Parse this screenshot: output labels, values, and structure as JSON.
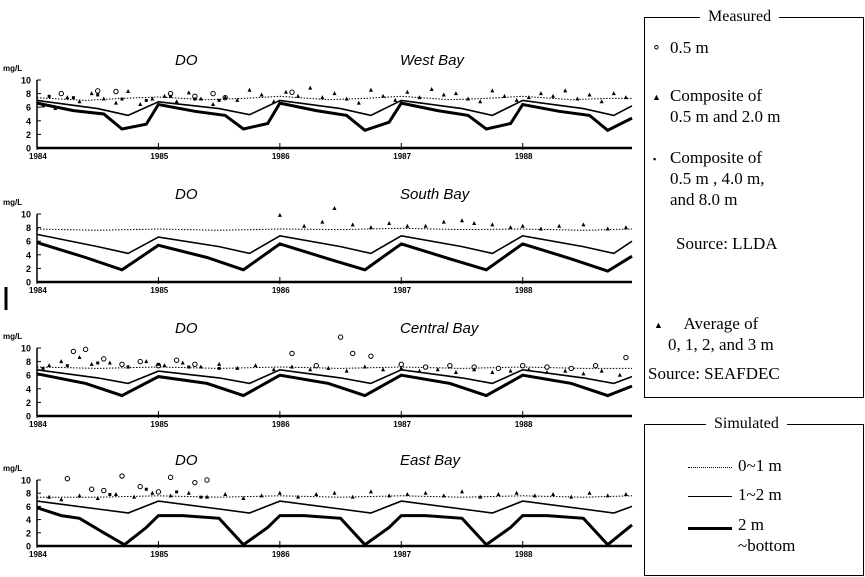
{
  "chart_data": [
    {
      "type": "line",
      "title": "DO",
      "subtitle": "West Bay",
      "ylabel": "mg/L",
      "yticks": [
        "0",
        "2",
        "4",
        "6",
        "8",
        "10"
      ],
      "ylim": [
        0,
        10
      ],
      "xticks": [
        "1984",
        "1985",
        "1986",
        "1987",
        "1988"
      ],
      "xlim": [
        1984,
        1988.9
      ],
      "grid": false,
      "series": [
        {
          "name": "0~1 m",
          "style": "dotted",
          "x": [
            1984.0,
            1984.4,
            1984.7,
            1985.0,
            1985.4,
            1985.7,
            1986.0,
            1986.4,
            1986.7,
            1987.0,
            1987.4,
            1987.7,
            1988.0,
            1988.4,
            1988.7,
            1988.9
          ],
          "y": [
            7.4,
            7.0,
            7.3,
            7.5,
            7.1,
            7.3,
            7.6,
            7.1,
            7.3,
            7.6,
            7.1,
            7.3,
            7.6,
            7.1,
            7.3,
            7.3
          ]
        },
        {
          "name": "1~2 m",
          "style": "solid",
          "x": [
            1984.0,
            1984.5,
            1984.75,
            1985.0,
            1985.5,
            1985.75,
            1986.0,
            1986.5,
            1986.75,
            1987.0,
            1987.5,
            1987.75,
            1988.0,
            1988.5,
            1988.75,
            1988.9
          ],
          "y": [
            7.0,
            5.8,
            4.8,
            6.8,
            5.8,
            4.9,
            7.0,
            5.8,
            4.8,
            7.0,
            5.8,
            4.8,
            7.0,
            5.8,
            4.8,
            6.2
          ]
        },
        {
          "name": "2 m ~bottom",
          "style": "thick",
          "x": [
            1984.0,
            1984.3,
            1984.55,
            1984.7,
            1984.9,
            1985.0,
            1985.3,
            1985.55,
            1985.7,
            1985.9,
            1986.0,
            1986.3,
            1986.55,
            1986.7,
            1986.9,
            1987.0,
            1987.3,
            1987.55,
            1987.7,
            1987.9,
            1988.0,
            1988.3,
            1988.55,
            1988.7,
            1988.9
          ],
          "y": [
            6.6,
            5.5,
            5.0,
            2.8,
            3.5,
            6.4,
            5.4,
            4.8,
            2.8,
            3.6,
            6.6,
            5.5,
            4.8,
            2.6,
            3.8,
            6.6,
            5.5,
            4.8,
            2.8,
            3.6,
            6.4,
            5.4,
            4.8,
            2.6,
            4.4
          ]
        }
      ],
      "points": {
        "circle": {
          "x": [
            1984.2,
            1984.5,
            1984.65,
            1985.1,
            1985.3,
            1985.45,
            1985.55,
            1986.1
          ],
          "y": [
            8.0,
            8.4,
            8.3,
            8.0,
            7.6,
            8.0,
            7.4,
            8.2
          ]
        },
        "triangle": {
          "x": [
            1984.05,
            1984.15,
            1984.25,
            1984.35,
            1984.45,
            1984.55,
            1984.65,
            1984.75,
            1984.85,
            1984.95,
            1985.05,
            1985.15,
            1985.25,
            1985.35,
            1985.45,
            1985.55,
            1985.65,
            1985.75,
            1985.85,
            1985.95,
            1986.05,
            1986.15,
            1986.25,
            1986.35,
            1986.45,
            1986.55,
            1986.65,
            1986.75,
            1986.85,
            1986.95,
            1987.05,
            1987.15,
            1987.25,
            1987.35,
            1987.45,
            1987.55,
            1987.65,
            1987.75,
            1987.85,
            1987.95,
            1988.05,
            1988.15,
            1988.25,
            1988.35,
            1988.45,
            1988.55,
            1988.65,
            1988.75,
            1988.85
          ],
          "y": [
            6.2,
            5.8,
            7.4,
            6.8,
            8.0,
            7.2,
            6.6,
            8.3,
            6.4,
            7.2,
            7.6,
            6.8,
            8.1,
            7.2,
            6.4,
            7.4,
            7.0,
            8.5,
            7.8,
            6.8,
            8.2,
            7.6,
            8.8,
            7.4,
            8.0,
            7.2,
            6.6,
            8.5,
            7.6,
            7.0,
            8.2,
            7.4,
            8.6,
            7.8,
            8.0,
            7.2,
            6.8,
            8.4,
            7.6,
            7.0,
            7.4,
            8.0,
            7.6,
            8.4,
            7.2,
            7.8,
            6.8,
            8.0,
            7.4
          ]
        },
        "square": {
          "x": [
            1984.1,
            1984.3,
            1984.5,
            1984.7,
            1984.9,
            1985.1,
            1985.3,
            1985.5
          ],
          "y": [
            7.6,
            7.4,
            7.8,
            7.2,
            7.0,
            7.6,
            7.2,
            7.0
          ]
        }
      }
    },
    {
      "type": "line",
      "title": "DO",
      "subtitle": "South Bay",
      "ylabel": "mg/L",
      "yticks": [
        "0",
        "2",
        "4",
        "6",
        "8",
        "10"
      ],
      "ylim": [
        0,
        10
      ],
      "xticks": [
        "1984",
        "1985",
        "1986",
        "1987",
        "1988"
      ],
      "xlim": [
        1984,
        1988.9
      ],
      "grid": false,
      "series": [
        {
          "name": "0~1 m",
          "style": "dotted",
          "x": [
            1984.0,
            1984.5,
            1985.0,
            1985.5,
            1986.0,
            1986.5,
            1987.0,
            1987.5,
            1988.0,
            1988.5,
            1988.9
          ],
          "y": [
            7.8,
            7.6,
            7.8,
            7.6,
            7.8,
            7.7,
            7.9,
            7.7,
            7.8,
            7.6,
            7.8
          ]
        },
        {
          "name": "1~2 m",
          "style": "solid",
          "x": [
            1984.0,
            1984.5,
            1984.75,
            1985.0,
            1985.5,
            1985.75,
            1986.0,
            1986.5,
            1986.75,
            1987.0,
            1987.5,
            1987.75,
            1988.0,
            1988.5,
            1988.75,
            1988.9
          ],
          "y": [
            7.0,
            5.2,
            4.2,
            6.6,
            5.2,
            4.2,
            6.8,
            5.2,
            4.2,
            6.8,
            5.2,
            4.2,
            6.8,
            5.2,
            4.2,
            6.0
          ]
        },
        {
          "name": "2 m ~bottom",
          "style": "thick",
          "x": [
            1984.0,
            1984.4,
            1984.7,
            1985.0,
            1985.4,
            1985.7,
            1986.0,
            1986.4,
            1986.7,
            1987.0,
            1987.4,
            1987.7,
            1988.0,
            1988.4,
            1988.7,
            1988.9
          ],
          "y": [
            5.8,
            3.6,
            1.8,
            5.4,
            3.6,
            1.8,
            5.6,
            3.4,
            1.8,
            5.6,
            3.4,
            1.8,
            5.6,
            3.4,
            1.6,
            3.8
          ]
        }
      ],
      "points": {
        "triangle": {
          "x": [
            1986.0,
            1986.2,
            1986.35,
            1986.45,
            1986.6,
            1986.75,
            1986.9,
            1987.05,
            1987.2,
            1987.35,
            1987.5,
            1987.6,
            1987.75,
            1987.9,
            1988.0,
            1988.15,
            1988.3,
            1988.5,
            1988.7,
            1988.85
          ],
          "y": [
            9.8,
            8.2,
            8.8,
            10.8,
            8.4,
            8.0,
            8.6,
            8.2,
            8.2,
            8.8,
            9.0,
            8.6,
            8.4,
            8.0,
            8.2,
            7.8,
            8.2,
            8.4,
            7.8,
            8.0
          ]
        }
      }
    },
    {
      "type": "line",
      "title": "DO",
      "subtitle": "Central Bay",
      "ylabel": "mg/L",
      "yticks": [
        "0",
        "2",
        "4",
        "6",
        "8",
        "10"
      ],
      "ylim": [
        0,
        10
      ],
      "xticks": [
        "1984",
        "1985",
        "1986",
        "1987",
        "1988"
      ],
      "xlim": [
        1984,
        1988.9
      ],
      "grid": false,
      "series": [
        {
          "name": "0~1 m",
          "style": "dotted",
          "x": [
            1984.0,
            1984.5,
            1985.0,
            1985.5,
            1986.0,
            1986.5,
            1987.0,
            1987.5,
            1988.0,
            1988.5,
            1988.9
          ],
          "y": [
            7.2,
            7.0,
            7.2,
            7.0,
            7.2,
            7.0,
            7.2,
            7.0,
            7.2,
            7.0,
            7.0
          ]
        },
        {
          "name": "1~2 m",
          "style": "solid",
          "x": [
            1984.0,
            1984.5,
            1984.75,
            1985.0,
            1985.5,
            1985.75,
            1986.0,
            1986.5,
            1986.75,
            1987.0,
            1987.5,
            1987.75,
            1988.0,
            1988.5,
            1988.75,
            1988.9
          ],
          "y": [
            6.8,
            5.6,
            4.8,
            6.6,
            5.6,
            4.8,
            6.8,
            5.6,
            4.8,
            6.8,
            5.6,
            4.8,
            6.8,
            5.6,
            4.8,
            5.8
          ]
        },
        {
          "name": "2 m ~bottom",
          "style": "thick",
          "x": [
            1984.0,
            1984.4,
            1984.7,
            1985.0,
            1985.4,
            1985.7,
            1986.0,
            1986.4,
            1986.7,
            1987.0,
            1987.4,
            1987.7,
            1988.0,
            1988.4,
            1988.7,
            1988.9
          ],
          "y": [
            6.2,
            4.8,
            3.0,
            5.8,
            4.8,
            3.0,
            6.0,
            4.8,
            3.0,
            6.0,
            4.8,
            3.0,
            6.0,
            4.8,
            3.0,
            4.4
          ]
        }
      ],
      "points": {
        "circle": {
          "x": [
            1984.3,
            1984.4,
            1984.55,
            1984.7,
            1984.85,
            1985.0,
            1985.15,
            1985.3,
            1986.1,
            1986.3,
            1986.5,
            1986.6,
            1986.75,
            1987.0,
            1987.2,
            1987.4,
            1987.6,
            1987.8,
            1988.0,
            1988.2,
            1988.4,
            1988.6,
            1988.85
          ],
          "y": [
            9.5,
            9.8,
            8.4,
            7.6,
            8.0,
            7.4,
            8.2,
            7.6,
            9.2,
            7.4,
            11.6,
            9.2,
            8.8,
            7.6,
            7.2,
            7.4,
            7.2,
            7.0,
            7.4,
            7.2,
            7.0,
            7.4,
            8.6
          ]
        },
        "triangle": {
          "x": [
            1984.1,
            1984.2,
            1984.35,
            1984.45,
            1984.6,
            1984.75,
            1984.9,
            1985.05,
            1985.2,
            1985.35,
            1985.5,
            1985.65,
            1985.8,
            1985.95,
            1986.1,
            1986.25,
            1986.4,
            1986.55,
            1986.7,
            1986.85,
            1987.0,
            1987.15,
            1987.3,
            1987.45,
            1987.6,
            1987.75,
            1987.9,
            1988.05,
            1988.2,
            1988.35,
            1988.5,
            1988.65,
            1988.8
          ],
          "y": [
            7.4,
            8.0,
            8.6,
            7.6,
            7.8,
            7.2,
            8.0,
            7.4,
            7.8,
            7.2,
            7.6,
            7.0,
            7.4,
            6.8,
            7.2,
            6.8,
            7.0,
            6.6,
            7.2,
            6.8,
            7.0,
            6.6,
            6.8,
            6.4,
            6.8,
            6.4,
            6.6,
            6.8,
            6.4,
            6.6,
            6.2,
            6.6,
            6.0
          ]
        },
        "square": {
          "x": [
            1984.05,
            1984.25,
            1984.5,
            1984.75,
            1985.0,
            1985.25,
            1985.5
          ],
          "y": [
            7.0,
            7.4,
            7.8,
            7.2,
            7.6,
            7.2,
            7.0
          ]
        }
      }
    },
    {
      "type": "line",
      "title": "DO",
      "subtitle": "East Bay",
      "ylabel": "mg/L",
      "yticks": [
        "0",
        "2",
        "4",
        "6",
        "8",
        "10"
      ],
      "ylim": [
        0,
        10
      ],
      "xticks": [
        "1984",
        "1985",
        "1986",
        "1987",
        "1988"
      ],
      "xlim": [
        1984,
        1988.9
      ],
      "grid": false,
      "series": [
        {
          "name": "0~1 m",
          "style": "dotted",
          "x": [
            1984.0,
            1984.5,
            1985.0,
            1985.5,
            1986.0,
            1986.5,
            1987.0,
            1987.5,
            1988.0,
            1988.5,
            1988.9
          ],
          "y": [
            7.4,
            7.4,
            7.6,
            7.4,
            7.6,
            7.4,
            7.6,
            7.4,
            7.6,
            7.4,
            7.6
          ]
        },
        {
          "name": "1~2 m",
          "style": "solid",
          "x": [
            1984.0,
            1984.5,
            1984.75,
            1985.0,
            1985.5,
            1985.75,
            1986.0,
            1986.5,
            1986.75,
            1987.0,
            1987.5,
            1987.75,
            1988.0,
            1988.5,
            1988.75,
            1988.9
          ],
          "y": [
            6.8,
            5.6,
            5.0,
            6.8,
            5.6,
            5.0,
            6.8,
            5.6,
            5.0,
            6.8,
            5.6,
            5.0,
            6.8,
            5.6,
            5.0,
            6.0
          ]
        },
        {
          "name": "2 m ~bottom",
          "style": "thick",
          "x": [
            1984.0,
            1984.2,
            1984.35,
            1984.55,
            1984.72,
            1984.9,
            1985.0,
            1985.2,
            1985.5,
            1985.7,
            1985.9,
            1986.0,
            1986.2,
            1986.5,
            1986.7,
            1986.9,
            1987.0,
            1987.2,
            1987.5,
            1987.7,
            1987.9,
            1988.0,
            1988.2,
            1988.5,
            1988.7,
            1988.9
          ],
          "y": [
            5.8,
            4.6,
            4.2,
            2.0,
            0.2,
            2.8,
            4.6,
            4.6,
            4.2,
            0.2,
            2.8,
            4.6,
            4.6,
            4.2,
            0.2,
            2.8,
            4.6,
            4.6,
            4.2,
            0.2,
            2.8,
            4.6,
            4.6,
            4.2,
            0.2,
            3.2
          ]
        }
      ],
      "points": {
        "circle": {
          "x": [
            1984.25,
            1984.45,
            1984.55,
            1984.7,
            1984.85,
            1985.0,
            1985.1,
            1985.3,
            1985.4
          ],
          "y": [
            10.2,
            8.6,
            8.4,
            10.6,
            9.0,
            8.2,
            10.4,
            9.6,
            10.0
          ]
        },
        "triangle": {
          "x": [
            1984.1,
            1984.2,
            1984.35,
            1984.5,
            1984.65,
            1984.8,
            1984.95,
            1985.1,
            1985.25,
            1985.4,
            1985.55,
            1985.7,
            1985.85,
            1986.0,
            1986.15,
            1986.3,
            1986.45,
            1986.6,
            1986.75,
            1986.9,
            1987.05,
            1987.2,
            1987.35,
            1987.5,
            1987.65,
            1987.8,
            1987.95,
            1988.1,
            1988.25,
            1988.4,
            1988.55,
            1988.7,
            1988.85
          ],
          "y": [
            7.4,
            7.0,
            7.6,
            7.2,
            7.8,
            7.4,
            8.0,
            7.6,
            8.0,
            7.4,
            7.8,
            7.2,
            7.6,
            8.0,
            7.4,
            7.8,
            8.0,
            7.4,
            8.2,
            7.6,
            7.8,
            8.0,
            7.6,
            8.2,
            7.4,
            7.8,
            8.0,
            7.6,
            7.8,
            7.4,
            8.0,
            7.6,
            7.8
          ]
        },
        "square": {
          "x": [
            1984.6,
            1984.9,
            1985.15,
            1985.35
          ],
          "y": [
            7.8,
            8.6,
            8.2,
            7.4
          ]
        }
      }
    }
  ],
  "legend": {
    "measured": {
      "title": "Measured",
      "items": [
        {
          "text": "0.5 m"
        },
        {
          "text": "Composite of\n0.5 m and 2.0 m"
        },
        {
          "text": "Composite of\n0.5 m , 4.0 m,\nand 8.0 m"
        },
        {
          "text": "Average of\n0, 1, 2, and 3 m"
        }
      ],
      "source1": "Source: LLDA",
      "source2": "Source: SEAFDEC"
    },
    "simulated": {
      "title": "Simulated",
      "items": [
        {
          "text": "0~1 m"
        },
        {
          "text": "1~2 m"
        },
        {
          "text": "2 m\n~bottom"
        }
      ]
    }
  }
}
